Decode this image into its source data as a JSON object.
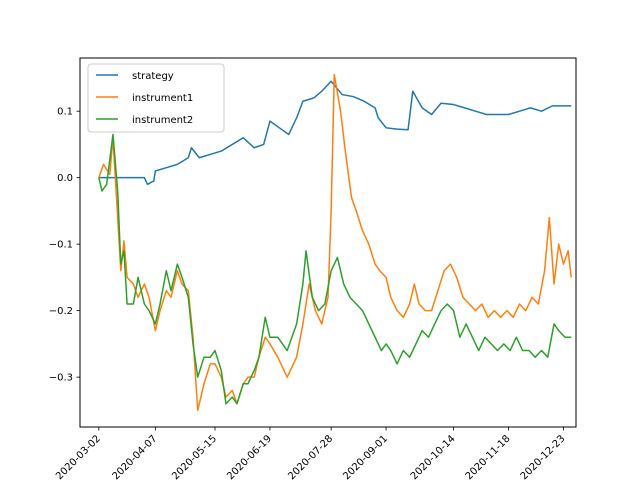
{
  "chart_data": {
    "type": "line",
    "title": "",
    "xlabel": "",
    "ylabel": "",
    "x_tick_labels": [
      "2020-03-02",
      "2020-04-07",
      "2020-05-15",
      "2020-06-19",
      "2020-07-28",
      "2020-09-01",
      "2020-10-14",
      "2020-11-18",
      "2020-12-23"
    ],
    "y_ticks": [
      0.1,
      0.0,
      -0.1,
      -0.2,
      -0.3
    ],
    "y_tick_labels": [
      "0.1",
      "0.0",
      "−0.1",
      "−0.2",
      "−0.3"
    ],
    "ylim": [
      -0.375,
      0.18
    ],
    "xlim": [
      "2020-02-19",
      "2020-12-31"
    ],
    "grid": false,
    "legend_position": "upper-left",
    "series": [
      {
        "name": "strategy",
        "color": "#1f77b4",
        "points": [
          [
            "2020-03-02",
            0.0
          ],
          [
            "2020-03-16",
            0.0
          ],
          [
            "2020-03-31",
            0.0
          ],
          [
            "2020-04-02",
            -0.01
          ],
          [
            "2020-04-06",
            -0.005
          ],
          [
            "2020-04-07",
            0.01
          ],
          [
            "2020-04-14",
            0.015
          ],
          [
            "2020-04-21",
            0.02
          ],
          [
            "2020-04-28",
            0.03
          ],
          [
            "2020-04-30",
            0.045
          ],
          [
            "2020-05-05",
            0.03
          ],
          [
            "2020-05-12",
            0.035
          ],
          [
            "2020-05-19",
            0.04
          ],
          [
            "2020-05-26",
            0.05
          ],
          [
            "2020-06-02",
            0.06
          ],
          [
            "2020-06-09",
            0.045
          ],
          [
            "2020-06-15",
            0.05
          ],
          [
            "2020-06-19",
            0.085
          ],
          [
            "2020-06-25",
            0.075
          ],
          [
            "2020-07-01",
            0.065
          ],
          [
            "2020-07-06",
            0.09
          ],
          [
            "2020-07-10",
            0.115
          ],
          [
            "2020-07-17",
            0.12
          ],
          [
            "2020-07-22",
            0.13
          ],
          [
            "2020-07-28",
            0.145
          ],
          [
            "2020-08-04",
            0.125
          ],
          [
            "2020-08-11",
            0.122
          ],
          [
            "2020-08-18",
            0.115
          ],
          [
            "2020-08-25",
            0.105
          ],
          [
            "2020-08-27",
            0.09
          ],
          [
            "2020-09-01",
            0.075
          ],
          [
            "2020-09-08",
            0.073
          ],
          [
            "2020-09-15",
            0.072
          ],
          [
            "2020-09-18",
            0.13
          ],
          [
            "2020-09-24",
            0.105
          ],
          [
            "2020-09-30",
            0.095
          ],
          [
            "2020-10-06",
            0.112
          ],
          [
            "2020-10-14",
            0.11
          ],
          [
            "2020-10-21",
            0.105
          ],
          [
            "2020-10-28",
            0.1
          ],
          [
            "2020-11-04",
            0.095
          ],
          [
            "2020-11-11",
            0.095
          ],
          [
            "2020-11-18",
            0.095
          ],
          [
            "2020-11-25",
            0.1
          ],
          [
            "2020-12-02",
            0.105
          ],
          [
            "2020-12-09",
            0.1
          ],
          [
            "2020-12-16",
            0.108
          ],
          [
            "2020-12-23",
            0.108
          ],
          [
            "2020-12-28",
            0.108
          ]
        ]
      },
      {
        "name": "instrument1",
        "color": "#ff7f0e",
        "points": [
          [
            "2020-03-02",
            0.0
          ],
          [
            "2020-03-05",
            0.02
          ],
          [
            "2020-03-09",
            0.005
          ],
          [
            "2020-03-11",
            0.06
          ],
          [
            "2020-03-16",
            -0.14
          ],
          [
            "2020-03-18",
            -0.095
          ],
          [
            "2020-03-20",
            -0.15
          ],
          [
            "2020-03-24",
            -0.16
          ],
          [
            "2020-03-27",
            -0.18
          ],
          [
            "2020-03-31",
            -0.16
          ],
          [
            "2020-04-03",
            -0.18
          ],
          [
            "2020-04-07",
            -0.23
          ],
          [
            "2020-04-10",
            -0.2
          ],
          [
            "2020-04-14",
            -0.17
          ],
          [
            "2020-04-17",
            -0.18
          ],
          [
            "2020-04-21",
            -0.14
          ],
          [
            "2020-04-24",
            -0.16
          ],
          [
            "2020-04-28",
            -0.17
          ],
          [
            "2020-05-01",
            -0.24
          ],
          [
            "2020-05-04",
            -0.35
          ],
          [
            "2020-05-08",
            -0.31
          ],
          [
            "2020-05-12",
            -0.28
          ],
          [
            "2020-05-15",
            -0.28
          ],
          [
            "2020-05-19",
            -0.3
          ],
          [
            "2020-05-22",
            -0.33
          ],
          [
            "2020-05-26",
            -0.32
          ],
          [
            "2020-05-29",
            -0.34
          ],
          [
            "2020-06-02",
            -0.31
          ],
          [
            "2020-06-05",
            -0.3
          ],
          [
            "2020-06-09",
            -0.3
          ],
          [
            "2020-06-12",
            -0.27
          ],
          [
            "2020-06-16",
            -0.24
          ],
          [
            "2020-06-19",
            -0.25
          ],
          [
            "2020-06-24",
            -0.27
          ],
          [
            "2020-06-30",
            -0.3
          ],
          [
            "2020-07-06",
            -0.27
          ],
          [
            "2020-07-10",
            -0.22
          ],
          [
            "2020-07-14",
            -0.16
          ],
          [
            "2020-07-18",
            -0.2
          ],
          [
            "2020-07-22",
            -0.22
          ],
          [
            "2020-07-26",
            -0.18
          ],
          [
            "2020-07-28",
            -0.05
          ],
          [
            "2020-07-30",
            0.155
          ],
          [
            "2020-08-03",
            0.1
          ],
          [
            "2020-08-06",
            0.04
          ],
          [
            "2020-08-10",
            -0.03
          ],
          [
            "2020-08-13",
            -0.05
          ],
          [
            "2020-08-17",
            -0.08
          ],
          [
            "2020-08-21",
            -0.1
          ],
          [
            "2020-08-25",
            -0.13
          ],
          [
            "2020-08-28",
            -0.14
          ],
          [
            "2020-09-01",
            -0.15
          ],
          [
            "2020-09-04",
            -0.18
          ],
          [
            "2020-09-08",
            -0.2
          ],
          [
            "2020-09-12",
            -0.21
          ],
          [
            "2020-09-16",
            -0.19
          ],
          [
            "2020-09-19",
            -0.16
          ],
          [
            "2020-09-22",
            -0.19
          ],
          [
            "2020-09-26",
            -0.2
          ],
          [
            "2020-09-30",
            -0.2
          ],
          [
            "2020-10-04",
            -0.17
          ],
          [
            "2020-10-08",
            -0.14
          ],
          [
            "2020-10-12",
            -0.13
          ],
          [
            "2020-10-16",
            -0.15
          ],
          [
            "2020-10-20",
            -0.18
          ],
          [
            "2020-10-24",
            -0.19
          ],
          [
            "2020-10-28",
            -0.2
          ],
          [
            "2020-11-01",
            -0.19
          ],
          [
            "2020-11-05",
            -0.21
          ],
          [
            "2020-11-09",
            -0.2
          ],
          [
            "2020-11-13",
            -0.21
          ],
          [
            "2020-11-17",
            -0.2
          ],
          [
            "2020-11-21",
            -0.21
          ],
          [
            "2020-11-25",
            -0.19
          ],
          [
            "2020-11-29",
            -0.2
          ],
          [
            "2020-12-03",
            -0.18
          ],
          [
            "2020-12-07",
            -0.19
          ],
          [
            "2020-12-11",
            -0.14
          ],
          [
            "2020-12-14",
            -0.06
          ],
          [
            "2020-12-17",
            -0.16
          ],
          [
            "2020-12-20",
            -0.1
          ],
          [
            "2020-12-23",
            -0.13
          ],
          [
            "2020-12-26",
            -0.11
          ],
          [
            "2020-12-28",
            -0.15
          ]
        ]
      },
      {
        "name": "instrument2",
        "color": "#2ca02c",
        "points": [
          [
            "2020-03-02",
            0.0
          ],
          [
            "2020-03-04",
            -0.02
          ],
          [
            "2020-03-07",
            -0.01
          ],
          [
            "2020-03-11",
            0.065
          ],
          [
            "2020-03-14",
            -0.02
          ],
          [
            "2020-03-16",
            -0.13
          ],
          [
            "2020-03-18",
            -0.11
          ],
          [
            "2020-03-20",
            -0.19
          ],
          [
            "2020-03-24",
            -0.19
          ],
          [
            "2020-03-27",
            -0.15
          ],
          [
            "2020-03-31",
            -0.19
          ],
          [
            "2020-04-03",
            -0.2
          ],
          [
            "2020-04-07",
            -0.22
          ],
          [
            "2020-04-10",
            -0.19
          ],
          [
            "2020-04-14",
            -0.14
          ],
          [
            "2020-04-17",
            -0.17
          ],
          [
            "2020-04-21",
            -0.13
          ],
          [
            "2020-04-24",
            -0.15
          ],
          [
            "2020-04-28",
            -0.18
          ],
          [
            "2020-05-01",
            -0.25
          ],
          [
            "2020-05-04",
            -0.3
          ],
          [
            "2020-05-08",
            -0.27
          ],
          [
            "2020-05-12",
            -0.27
          ],
          [
            "2020-05-15",
            -0.26
          ],
          [
            "2020-05-19",
            -0.29
          ],
          [
            "2020-05-22",
            -0.34
          ],
          [
            "2020-05-26",
            -0.33
          ],
          [
            "2020-05-29",
            -0.34
          ],
          [
            "2020-06-02",
            -0.31
          ],
          [
            "2020-06-05",
            -0.31
          ],
          [
            "2020-06-09",
            -0.29
          ],
          [
            "2020-06-12",
            -0.27
          ],
          [
            "2020-06-16",
            -0.21
          ],
          [
            "2020-06-19",
            -0.24
          ],
          [
            "2020-06-24",
            -0.24
          ],
          [
            "2020-06-30",
            -0.26
          ],
          [
            "2020-07-06",
            -0.22
          ],
          [
            "2020-07-10",
            -0.16
          ],
          [
            "2020-07-12",
            -0.11
          ],
          [
            "2020-07-16",
            -0.18
          ],
          [
            "2020-07-20",
            -0.2
          ],
          [
            "2020-07-24",
            -0.19
          ],
          [
            "2020-07-28",
            -0.14
          ],
          [
            "2020-08-01",
            -0.12
          ],
          [
            "2020-08-05",
            -0.16
          ],
          [
            "2020-08-09",
            -0.18
          ],
          [
            "2020-08-13",
            -0.19
          ],
          [
            "2020-08-17",
            -0.2
          ],
          [
            "2020-08-21",
            -0.22
          ],
          [
            "2020-08-25",
            -0.24
          ],
          [
            "2020-08-29",
            -0.26
          ],
          [
            "2020-09-01",
            -0.25
          ],
          [
            "2020-09-04",
            -0.26
          ],
          [
            "2020-09-08",
            -0.28
          ],
          [
            "2020-09-12",
            -0.26
          ],
          [
            "2020-09-16",
            -0.27
          ],
          [
            "2020-09-20",
            -0.25
          ],
          [
            "2020-09-24",
            -0.23
          ],
          [
            "2020-09-28",
            -0.24
          ],
          [
            "2020-10-02",
            -0.22
          ],
          [
            "2020-10-06",
            -0.2
          ],
          [
            "2020-10-10",
            -0.19
          ],
          [
            "2020-10-14",
            -0.2
          ],
          [
            "2020-10-18",
            -0.24
          ],
          [
            "2020-10-22",
            -0.22
          ],
          [
            "2020-10-26",
            -0.24
          ],
          [
            "2020-10-30",
            -0.26
          ],
          [
            "2020-11-03",
            -0.24
          ],
          [
            "2020-11-07",
            -0.25
          ],
          [
            "2020-11-11",
            -0.26
          ],
          [
            "2020-11-15",
            -0.25
          ],
          [
            "2020-11-19",
            -0.26
          ],
          [
            "2020-11-23",
            -0.24
          ],
          [
            "2020-11-27",
            -0.26
          ],
          [
            "2020-12-01",
            -0.26
          ],
          [
            "2020-12-05",
            -0.27
          ],
          [
            "2020-12-09",
            -0.26
          ],
          [
            "2020-12-13",
            -0.27
          ],
          [
            "2020-12-17",
            -0.22
          ],
          [
            "2020-12-20",
            -0.23
          ],
          [
            "2020-12-24",
            -0.24
          ],
          [
            "2020-12-28",
            -0.24
          ]
        ]
      }
    ]
  }
}
